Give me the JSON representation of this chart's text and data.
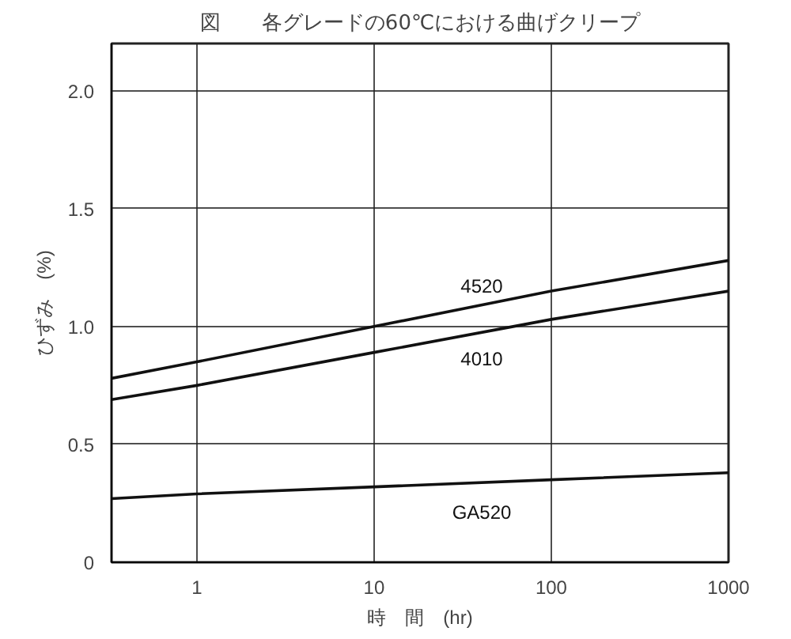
{
  "chart_data": {
    "type": "line",
    "title": "図　　各グレードの60℃における曲げクリープ",
    "xlabel": "時　間　(hr)",
    "ylabel": "ひずみ　(%)",
    "x": [
      0.33,
      1,
      10,
      100,
      1000
    ],
    "series": [
      {
        "name": "4520",
        "color": "#111111",
        "values": [
          0.78,
          0.85,
          1.0,
          1.15,
          1.28
        ]
      },
      {
        "name": "4010",
        "color": "#111111",
        "values": [
          0.69,
          0.75,
          0.89,
          1.03,
          1.15
        ]
      },
      {
        "name": "GA520",
        "color": "#111111",
        "values": [
          0.27,
          0.29,
          0.32,
          0.35,
          0.38
        ]
      }
    ],
    "log": "x",
    "xlim": [
      0.33,
      1000
    ],
    "xticks": [
      1,
      10,
      100,
      1000
    ],
    "ylim": [
      0,
      2.2
    ],
    "yticks": [
      0,
      {
        "value": 0.5,
        "label": "0.5"
      },
      {
        "value": 1.0,
        "label": "1.0"
      },
      {
        "value": 1.5,
        "label": "1.5"
      },
      {
        "value": 2.0,
        "label": "2.0"
      }
    ],
    "grid": true,
    "line_style": "solid",
    "marker": "none"
  }
}
